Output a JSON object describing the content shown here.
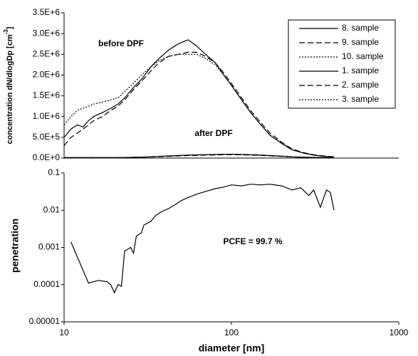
{
  "chart_data": [
    {
      "type": "line",
      "y_label": "concentration dN/dlogDp [cm",
      "y_label_sup": "-3",
      "y_label_end": "]",
      "x_log": true,
      "xlim": [
        10,
        1000
      ],
      "ylim": [
        0,
        3500000
      ],
      "yticks": [
        {
          "value": 0,
          "label": "0.0E+0"
        },
        {
          "value": 500000,
          "label": "5.0E+5"
        },
        {
          "value": 1000000,
          "label": "1.0E+6"
        },
        {
          "value": 1500000,
          "label": "1.5E+6"
        },
        {
          "value": 2000000,
          "label": "2.0E+6"
        },
        {
          "value": 2500000,
          "label": "2.5E+6"
        },
        {
          "value": 3000000,
          "label": "3.0E+6"
        },
        {
          "value": 3500000,
          "label": "3.5E+6"
        }
      ],
      "annotations": [
        "before DPF",
        "after DPF"
      ],
      "x": [
        10,
        11,
        12,
        13,
        14,
        15,
        17,
        19,
        21,
        23,
        26,
        29,
        33,
        37,
        42,
        48,
        55,
        62,
        70,
        80,
        90,
        100,
        115,
        130,
        150,
        170,
        200,
        230,
        270,
        310,
        360,
        410
      ],
      "series": [
        {
          "name": "8. sample",
          "color": "#000000",
          "dash": "solid",
          "values": [
            10000,
            10000,
            10000,
            10000,
            10000,
            10000,
            10000,
            10000,
            10000,
            12000,
            20000,
            20000,
            30000,
            40000,
            50000,
            60000,
            70000,
            75000,
            80000,
            85000,
            90000,
            90000,
            85000,
            80000,
            70000,
            60000,
            45000,
            30000,
            20000,
            15000,
            10000,
            10000
          ]
        },
        {
          "name": "9. sample",
          "color": "#000000",
          "dash": "dashed",
          "values": [
            8000,
            8000,
            8000,
            8000,
            8000,
            9000,
            9000,
            9000,
            10000,
            10000,
            15000,
            18000,
            25000,
            35000,
            42000,
            52000,
            60000,
            66000,
            72000,
            76000,
            80000,
            82000,
            78000,
            72000,
            64000,
            54000,
            40000,
            28000,
            18000,
            12000,
            9000,
            8000
          ]
        },
        {
          "name": "10. sample",
          "color": "#000000",
          "dash": "dotted",
          "values": [
            12000,
            12000,
            12000,
            12000,
            12000,
            12000,
            12000,
            12000,
            12000,
            14000,
            22000,
            25000,
            32000,
            42000,
            52000,
            62000,
            72000,
            78000,
            84000,
            88000,
            92000,
            95000,
            90000,
            84000,
            74000,
            62000,
            48000,
            33000,
            22000,
            16000,
            11000,
            10000
          ]
        },
        {
          "name": "1. sample",
          "color": "#000000",
          "dash": "solid",
          "values": [
            500000,
            700000,
            800000,
            750000,
            900000,
            1000000,
            1100000,
            1200000,
            1300000,
            1450000,
            1700000,
            1900000,
            2200000,
            2400000,
            2600000,
            2750000,
            2850000,
            2700000,
            2500000,
            2300000,
            2000000,
            1750000,
            1400000,
            1100000,
            800000,
            550000,
            350000,
            200000,
            120000,
            70000,
            40000,
            30000
          ]
        },
        {
          "name": "2. sample",
          "color": "#000000",
          "dash": "dashed",
          "values": [
            300000,
            500000,
            600000,
            700000,
            800000,
            900000,
            1000000,
            1150000,
            1250000,
            1400000,
            1650000,
            1850000,
            2100000,
            2300000,
            2450000,
            2500000,
            2550000,
            2550000,
            2450000,
            2300000,
            2050000,
            1800000,
            1450000,
            1150000,
            850000,
            600000,
            380000,
            220000,
            130000,
            80000,
            50000,
            30000
          ]
        },
        {
          "name": "3. sample",
          "color": "#000000",
          "dash": "dotted",
          "values": [
            800000,
            1000000,
            1150000,
            1200000,
            1250000,
            1300000,
            1350000,
            1400000,
            1450000,
            1600000,
            1800000,
            2000000,
            2200000,
            2350000,
            2450000,
            2500000,
            2500000,
            2500000,
            2400000,
            2250000,
            2000000,
            1750000,
            1400000,
            1100000,
            800000,
            550000,
            360000,
            200000,
            120000,
            70000,
            40000,
            30000
          ]
        }
      ]
    },
    {
      "type": "line",
      "y_label": "penetration",
      "x_label": "diameter [nm]",
      "x_log": true,
      "xlim": [
        10,
        1000
      ],
      "xticks": [
        10,
        100,
        1000
      ],
      "y_log": true,
      "ylim": [
        1e-05,
        0.1
      ],
      "yticks": [
        1e-05,
        0.0001,
        0.001,
        0.01,
        0.1
      ],
      "annotations": [
        "PCFE = 99.7 %"
      ],
      "x": [
        11,
        14,
        16,
        18,
        19,
        20,
        21,
        22,
        23,
        25,
        26,
        27,
        29,
        30,
        33,
        35,
        38,
        42,
        46,
        50,
        55,
        62,
        70,
        80,
        90,
        100,
        115,
        130,
        150,
        170,
        200,
        230,
        260,
        290,
        310,
        340,
        370,
        390,
        410
      ],
      "series": [
        {
          "color": "#000000",
          "dash": "solid",
          "values": [
            0.0014,
            0.00011,
            0.00013,
            0.00012,
            0.0001,
            6e-05,
            0.0001,
            9e-05,
            0.0008,
            0.001,
            0.0007,
            0.002,
            0.0025,
            0.004,
            0.005,
            0.007,
            0.009,
            0.011,
            0.014,
            0.018,
            0.022,
            0.027,
            0.032,
            0.038,
            0.042,
            0.048,
            0.045,
            0.05,
            0.048,
            0.05,
            0.045,
            0.035,
            0.04,
            0.025,
            0.035,
            0.012,
            0.035,
            0.03,
            0.01
          ]
        }
      ]
    }
  ]
}
